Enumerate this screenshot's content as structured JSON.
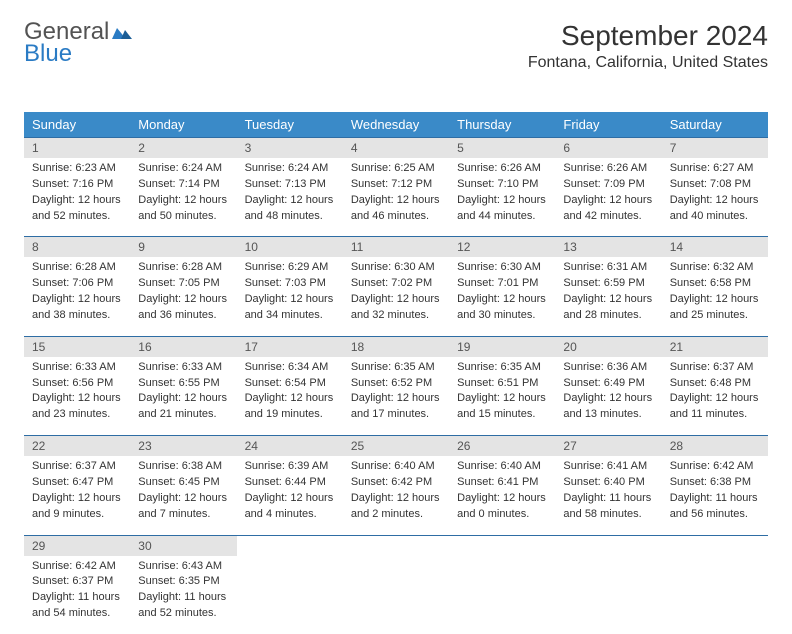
{
  "brand": {
    "part1": "General",
    "part2": "Blue"
  },
  "title": "September 2024",
  "location": "Fontana, California, United States",
  "colors": {
    "header_bg": "#3a8ac8",
    "header_fg": "#ffffff",
    "daynum_bg": "#e4e4e4",
    "daynum_fg": "#555555",
    "rule": "#2e6da4",
    "brand_gray": "#535353",
    "brand_blue": "#2a7bc4"
  },
  "weekdays": [
    "Sunday",
    "Monday",
    "Tuesday",
    "Wednesday",
    "Thursday",
    "Friday",
    "Saturday"
  ],
  "weeks": [
    [
      {
        "n": "1",
        "sr": "Sunrise: 6:23 AM",
        "ss": "Sunset: 7:16 PM",
        "d1": "Daylight: 12 hours",
        "d2": "and 52 minutes."
      },
      {
        "n": "2",
        "sr": "Sunrise: 6:24 AM",
        "ss": "Sunset: 7:14 PM",
        "d1": "Daylight: 12 hours",
        "d2": "and 50 minutes."
      },
      {
        "n": "3",
        "sr": "Sunrise: 6:24 AM",
        "ss": "Sunset: 7:13 PM",
        "d1": "Daylight: 12 hours",
        "d2": "and 48 minutes."
      },
      {
        "n": "4",
        "sr": "Sunrise: 6:25 AM",
        "ss": "Sunset: 7:12 PM",
        "d1": "Daylight: 12 hours",
        "d2": "and 46 minutes."
      },
      {
        "n": "5",
        "sr": "Sunrise: 6:26 AM",
        "ss": "Sunset: 7:10 PM",
        "d1": "Daylight: 12 hours",
        "d2": "and 44 minutes."
      },
      {
        "n": "6",
        "sr": "Sunrise: 6:26 AM",
        "ss": "Sunset: 7:09 PM",
        "d1": "Daylight: 12 hours",
        "d2": "and 42 minutes."
      },
      {
        "n": "7",
        "sr": "Sunrise: 6:27 AM",
        "ss": "Sunset: 7:08 PM",
        "d1": "Daylight: 12 hours",
        "d2": "and 40 minutes."
      }
    ],
    [
      {
        "n": "8",
        "sr": "Sunrise: 6:28 AM",
        "ss": "Sunset: 7:06 PM",
        "d1": "Daylight: 12 hours",
        "d2": "and 38 minutes."
      },
      {
        "n": "9",
        "sr": "Sunrise: 6:28 AM",
        "ss": "Sunset: 7:05 PM",
        "d1": "Daylight: 12 hours",
        "d2": "and 36 minutes."
      },
      {
        "n": "10",
        "sr": "Sunrise: 6:29 AM",
        "ss": "Sunset: 7:03 PM",
        "d1": "Daylight: 12 hours",
        "d2": "and 34 minutes."
      },
      {
        "n": "11",
        "sr": "Sunrise: 6:30 AM",
        "ss": "Sunset: 7:02 PM",
        "d1": "Daylight: 12 hours",
        "d2": "and 32 minutes."
      },
      {
        "n": "12",
        "sr": "Sunrise: 6:30 AM",
        "ss": "Sunset: 7:01 PM",
        "d1": "Daylight: 12 hours",
        "d2": "and 30 minutes."
      },
      {
        "n": "13",
        "sr": "Sunrise: 6:31 AM",
        "ss": "Sunset: 6:59 PM",
        "d1": "Daylight: 12 hours",
        "d2": "and 28 minutes."
      },
      {
        "n": "14",
        "sr": "Sunrise: 6:32 AM",
        "ss": "Sunset: 6:58 PM",
        "d1": "Daylight: 12 hours",
        "d2": "and 25 minutes."
      }
    ],
    [
      {
        "n": "15",
        "sr": "Sunrise: 6:33 AM",
        "ss": "Sunset: 6:56 PM",
        "d1": "Daylight: 12 hours",
        "d2": "and 23 minutes."
      },
      {
        "n": "16",
        "sr": "Sunrise: 6:33 AM",
        "ss": "Sunset: 6:55 PM",
        "d1": "Daylight: 12 hours",
        "d2": "and 21 minutes."
      },
      {
        "n": "17",
        "sr": "Sunrise: 6:34 AM",
        "ss": "Sunset: 6:54 PM",
        "d1": "Daylight: 12 hours",
        "d2": "and 19 minutes."
      },
      {
        "n": "18",
        "sr": "Sunrise: 6:35 AM",
        "ss": "Sunset: 6:52 PM",
        "d1": "Daylight: 12 hours",
        "d2": "and 17 minutes."
      },
      {
        "n": "19",
        "sr": "Sunrise: 6:35 AM",
        "ss": "Sunset: 6:51 PM",
        "d1": "Daylight: 12 hours",
        "d2": "and 15 minutes."
      },
      {
        "n": "20",
        "sr": "Sunrise: 6:36 AM",
        "ss": "Sunset: 6:49 PM",
        "d1": "Daylight: 12 hours",
        "d2": "and 13 minutes."
      },
      {
        "n": "21",
        "sr": "Sunrise: 6:37 AM",
        "ss": "Sunset: 6:48 PM",
        "d1": "Daylight: 12 hours",
        "d2": "and 11 minutes."
      }
    ],
    [
      {
        "n": "22",
        "sr": "Sunrise: 6:37 AM",
        "ss": "Sunset: 6:47 PM",
        "d1": "Daylight: 12 hours",
        "d2": "and 9 minutes."
      },
      {
        "n": "23",
        "sr": "Sunrise: 6:38 AM",
        "ss": "Sunset: 6:45 PM",
        "d1": "Daylight: 12 hours",
        "d2": "and 7 minutes."
      },
      {
        "n": "24",
        "sr": "Sunrise: 6:39 AM",
        "ss": "Sunset: 6:44 PM",
        "d1": "Daylight: 12 hours",
        "d2": "and 4 minutes."
      },
      {
        "n": "25",
        "sr": "Sunrise: 6:40 AM",
        "ss": "Sunset: 6:42 PM",
        "d1": "Daylight: 12 hours",
        "d2": "and 2 minutes."
      },
      {
        "n": "26",
        "sr": "Sunrise: 6:40 AM",
        "ss": "Sunset: 6:41 PM",
        "d1": "Daylight: 12 hours",
        "d2": "and 0 minutes."
      },
      {
        "n": "27",
        "sr": "Sunrise: 6:41 AM",
        "ss": "Sunset: 6:40 PM",
        "d1": "Daylight: 11 hours",
        "d2": "and 58 minutes."
      },
      {
        "n": "28",
        "sr": "Sunrise: 6:42 AM",
        "ss": "Sunset: 6:38 PM",
        "d1": "Daylight: 11 hours",
        "d2": "and 56 minutes."
      }
    ],
    [
      {
        "n": "29",
        "sr": "Sunrise: 6:42 AM",
        "ss": "Sunset: 6:37 PM",
        "d1": "Daylight: 11 hours",
        "d2": "and 54 minutes."
      },
      {
        "n": "30",
        "sr": "Sunrise: 6:43 AM",
        "ss": "Sunset: 6:35 PM",
        "d1": "Daylight: 11 hours",
        "d2": "and 52 minutes."
      },
      {
        "n": "",
        "sr": "",
        "ss": "",
        "d1": "",
        "d2": ""
      },
      {
        "n": "",
        "sr": "",
        "ss": "",
        "d1": "",
        "d2": ""
      },
      {
        "n": "",
        "sr": "",
        "ss": "",
        "d1": "",
        "d2": ""
      },
      {
        "n": "",
        "sr": "",
        "ss": "",
        "d1": "",
        "d2": ""
      },
      {
        "n": "",
        "sr": "",
        "ss": "",
        "d1": "",
        "d2": ""
      }
    ]
  ]
}
